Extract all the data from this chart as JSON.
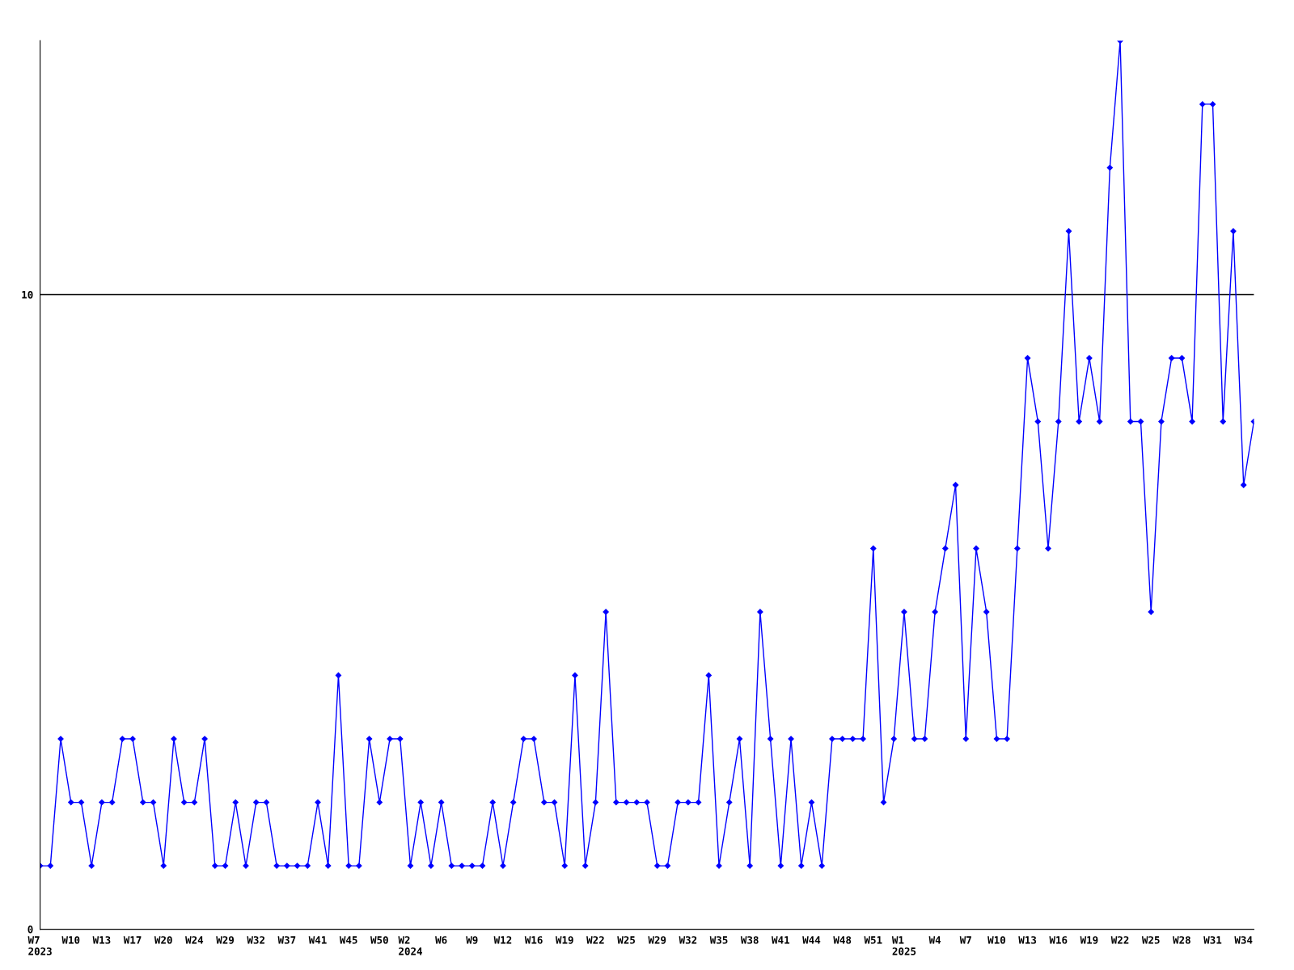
{
  "chart_data": {
    "type": "line",
    "categories": [
      "W7\n2023",
      null,
      null,
      "W10",
      null,
      null,
      "W13",
      null,
      null,
      "W17",
      null,
      null,
      "W20",
      null,
      null,
      "W24",
      null,
      null,
      "W29",
      null,
      null,
      "W32",
      null,
      null,
      "W37",
      null,
      null,
      "W41",
      null,
      null,
      "W45",
      null,
      null,
      "W50",
      null,
      null,
      "W2\n2024",
      null,
      null,
      "W6",
      null,
      null,
      "W9",
      null,
      null,
      "W12",
      null,
      null,
      "W16",
      null,
      null,
      "W19",
      null,
      null,
      "W22",
      null,
      null,
      "W25",
      null,
      null,
      "W29",
      null,
      null,
      "W32",
      null,
      null,
      "W35",
      null,
      null,
      "W38",
      null,
      null,
      "W41",
      null,
      null,
      "W44",
      null,
      null,
      "W48",
      null,
      null,
      "W51",
      null,
      null,
      "W1\n2025",
      null,
      null,
      "W4",
      null,
      null,
      "W7",
      null,
      null,
      "W10",
      null,
      null,
      "W13",
      null,
      null,
      "W16",
      null,
      null,
      "W19",
      null,
      null,
      "W22",
      null,
      null,
      "W25",
      null,
      null,
      "W28",
      null,
      null,
      "W31",
      null,
      null,
      "W34",
      null
    ],
    "series": [
      {
        "color": "#0000ff",
        "values": [
          1,
          1,
          3,
          2,
          2,
          1,
          2,
          2,
          3,
          3,
          2,
          2,
          1,
          3,
          2,
          2,
          3,
          1,
          1,
          2,
          1,
          2,
          2,
          1,
          1,
          1,
          1,
          2,
          1,
          4,
          1,
          1,
          3,
          2,
          3,
          3,
          1,
          2,
          1,
          2,
          1,
          1,
          1,
          1,
          2,
          1,
          2,
          3,
          3,
          2,
          2,
          1,
          4,
          1,
          2,
          5,
          2,
          2,
          2,
          2,
          1,
          1,
          2,
          2,
          2,
          4,
          1,
          2,
          3,
          1,
          5,
          3,
          1,
          3,
          1,
          2,
          1,
          3,
          3,
          3,
          3,
          6,
          2,
          3,
          5,
          3,
          3,
          5,
          6,
          7,
          3,
          6,
          5,
          3,
          3,
          6,
          9,
          8,
          6,
          8,
          11,
          8,
          9,
          8,
          12,
          14,
          8,
          8,
          5,
          8,
          9,
          9,
          8,
          13,
          13,
          8,
          11,
          7,
          8
        ]
      }
    ],
    "ylim": [
      0,
      14
    ],
    "yticks": [
      0,
      10
    ],
    "grid": "y",
    "marker": "diamond",
    "line_style": "solid"
  }
}
